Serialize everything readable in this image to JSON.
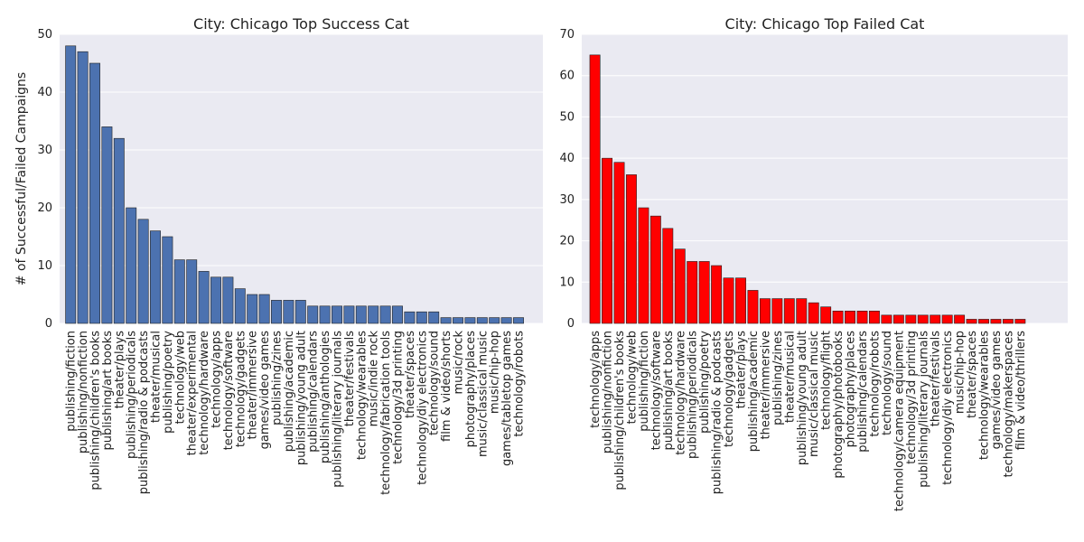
{
  "ylabel": "# of Successful/Failed Campaigns",
  "colors": {
    "background": "#eaeaf2",
    "grid": "#ffffff",
    "success_bar": "#4c72b0",
    "failed_bar": "#ff0000"
  },
  "chart_data": [
    {
      "type": "bar",
      "title": "City: Chicago Top Success Cat",
      "xlabel": "",
      "ylabel": "# of Successful/Failed Campaigns",
      "ylim": [
        0,
        50
      ],
      "yticks": [
        0,
        10,
        20,
        30,
        40,
        50
      ],
      "grid": true,
      "color": "#4c72b0",
      "categories": [
        "publishing/fiction",
        "publishing/nonfiction",
        "publishing/children's books",
        "publishing/art books",
        "theater/plays",
        "publishing/periodicals",
        "publishing/radio & podcasts",
        "theater/musical",
        "publishing/poetry",
        "technology/web",
        "theater/experimental",
        "technology/hardware",
        "technology/apps",
        "technology/software",
        "technology/gadgets",
        "theater/immersive",
        "games/video games",
        "publishing/zines",
        "publishing/academic",
        "publishing/young adult",
        "publishing/calendars",
        "publishing/anthologies",
        "publishing/literary journals",
        "theater/festivals",
        "technology/wearables",
        "music/indie rock",
        "technology/fabrication tools",
        "technology/3d printing",
        "theater/spaces",
        "technology/diy electronics",
        "technology/sound",
        "film & video/shorts",
        "music/rock",
        "photography/places",
        "music/classical music",
        "music/hip-hop",
        "games/tabletop games",
        "technology/robots"
      ],
      "values": [
        48,
        47,
        45,
        34,
        32,
        20,
        18,
        16,
        15,
        11,
        11,
        9,
        8,
        8,
        6,
        5,
        5,
        4,
        4,
        4,
        3,
        3,
        3,
        3,
        3,
        3,
        3,
        3,
        2,
        2,
        2,
        1,
        1,
        1,
        1,
        1,
        1,
        1
      ]
    },
    {
      "type": "bar",
      "title": "City: Chicago Top Failed Cat",
      "xlabel": "",
      "ylabel": "",
      "ylim": [
        0,
        70
      ],
      "yticks": [
        0,
        10,
        20,
        30,
        40,
        50,
        60,
        70
      ],
      "grid": true,
      "color": "#ff0000",
      "categories": [
        "technology/apps",
        "publishing/nonfiction",
        "publishing/children's books",
        "technology/web",
        "publishing/fiction",
        "technology/software",
        "publishing/art books",
        "technology/hardware",
        "publishing/periodicals",
        "publishing/poetry",
        "publishing/radio & podcasts",
        "technology/gadgets",
        "theater/plays",
        "publishing/academic",
        "theater/immersive",
        "publishing/zines",
        "theater/musical",
        "publishing/young adult",
        "music/classical music",
        "technology/flight",
        "photography/photobooks",
        "photography/places",
        "publishing/calendars",
        "technology/robots",
        "technology/sound",
        "technology/camera equipment",
        "technology/3d printing",
        "publishing/literary journals",
        "theater/festivals",
        "technology/diy electronics",
        "music/hip-hop",
        "theater/spaces",
        "technology/wearables",
        "games/video games",
        "technology/makerspaces",
        "film & video/thrillers"
      ],
      "values": [
        65,
        40,
        39,
        36,
        28,
        26,
        23,
        18,
        15,
        15,
        14,
        11,
        11,
        8,
        6,
        6,
        6,
        6,
        5,
        4,
        3,
        3,
        3,
        3,
        2,
        2,
        2,
        2,
        2,
        2,
        2,
        1,
        1,
        1,
        1,
        1
      ]
    }
  ]
}
